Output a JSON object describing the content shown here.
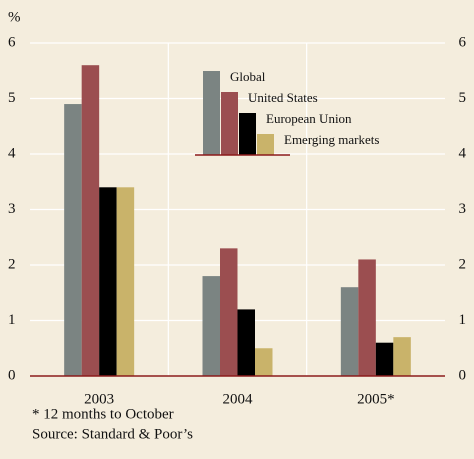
{
  "chart_data": {
    "type": "bar",
    "y_label": "%",
    "categories": [
      "2003",
      "2004",
      "2005*"
    ],
    "series": [
      {
        "name": "Global",
        "color": "#7b8482",
        "values": [
          4.9,
          1.8,
          1.6
        ]
      },
      {
        "name": "United States",
        "color": "#9b4e50",
        "values": [
          5.6,
          2.3,
          2.1
        ]
      },
      {
        "name": "European Union",
        "color": "#000000",
        "values": [
          3.4,
          1.2,
          0.6
        ]
      },
      {
        "name": "Emerging markets",
        "color": "#c9b36a",
        "values": [
          3.4,
          0.5,
          0.7
        ]
      }
    ],
    "ylim": [
      0,
      6
    ],
    "yticks": [
      0,
      1,
      2,
      3,
      4,
      5,
      6
    ],
    "grid": true,
    "legend": "top",
    "notes": [
      "* 12 months to October",
      "Source: Standard & Poor’s"
    ]
  }
}
